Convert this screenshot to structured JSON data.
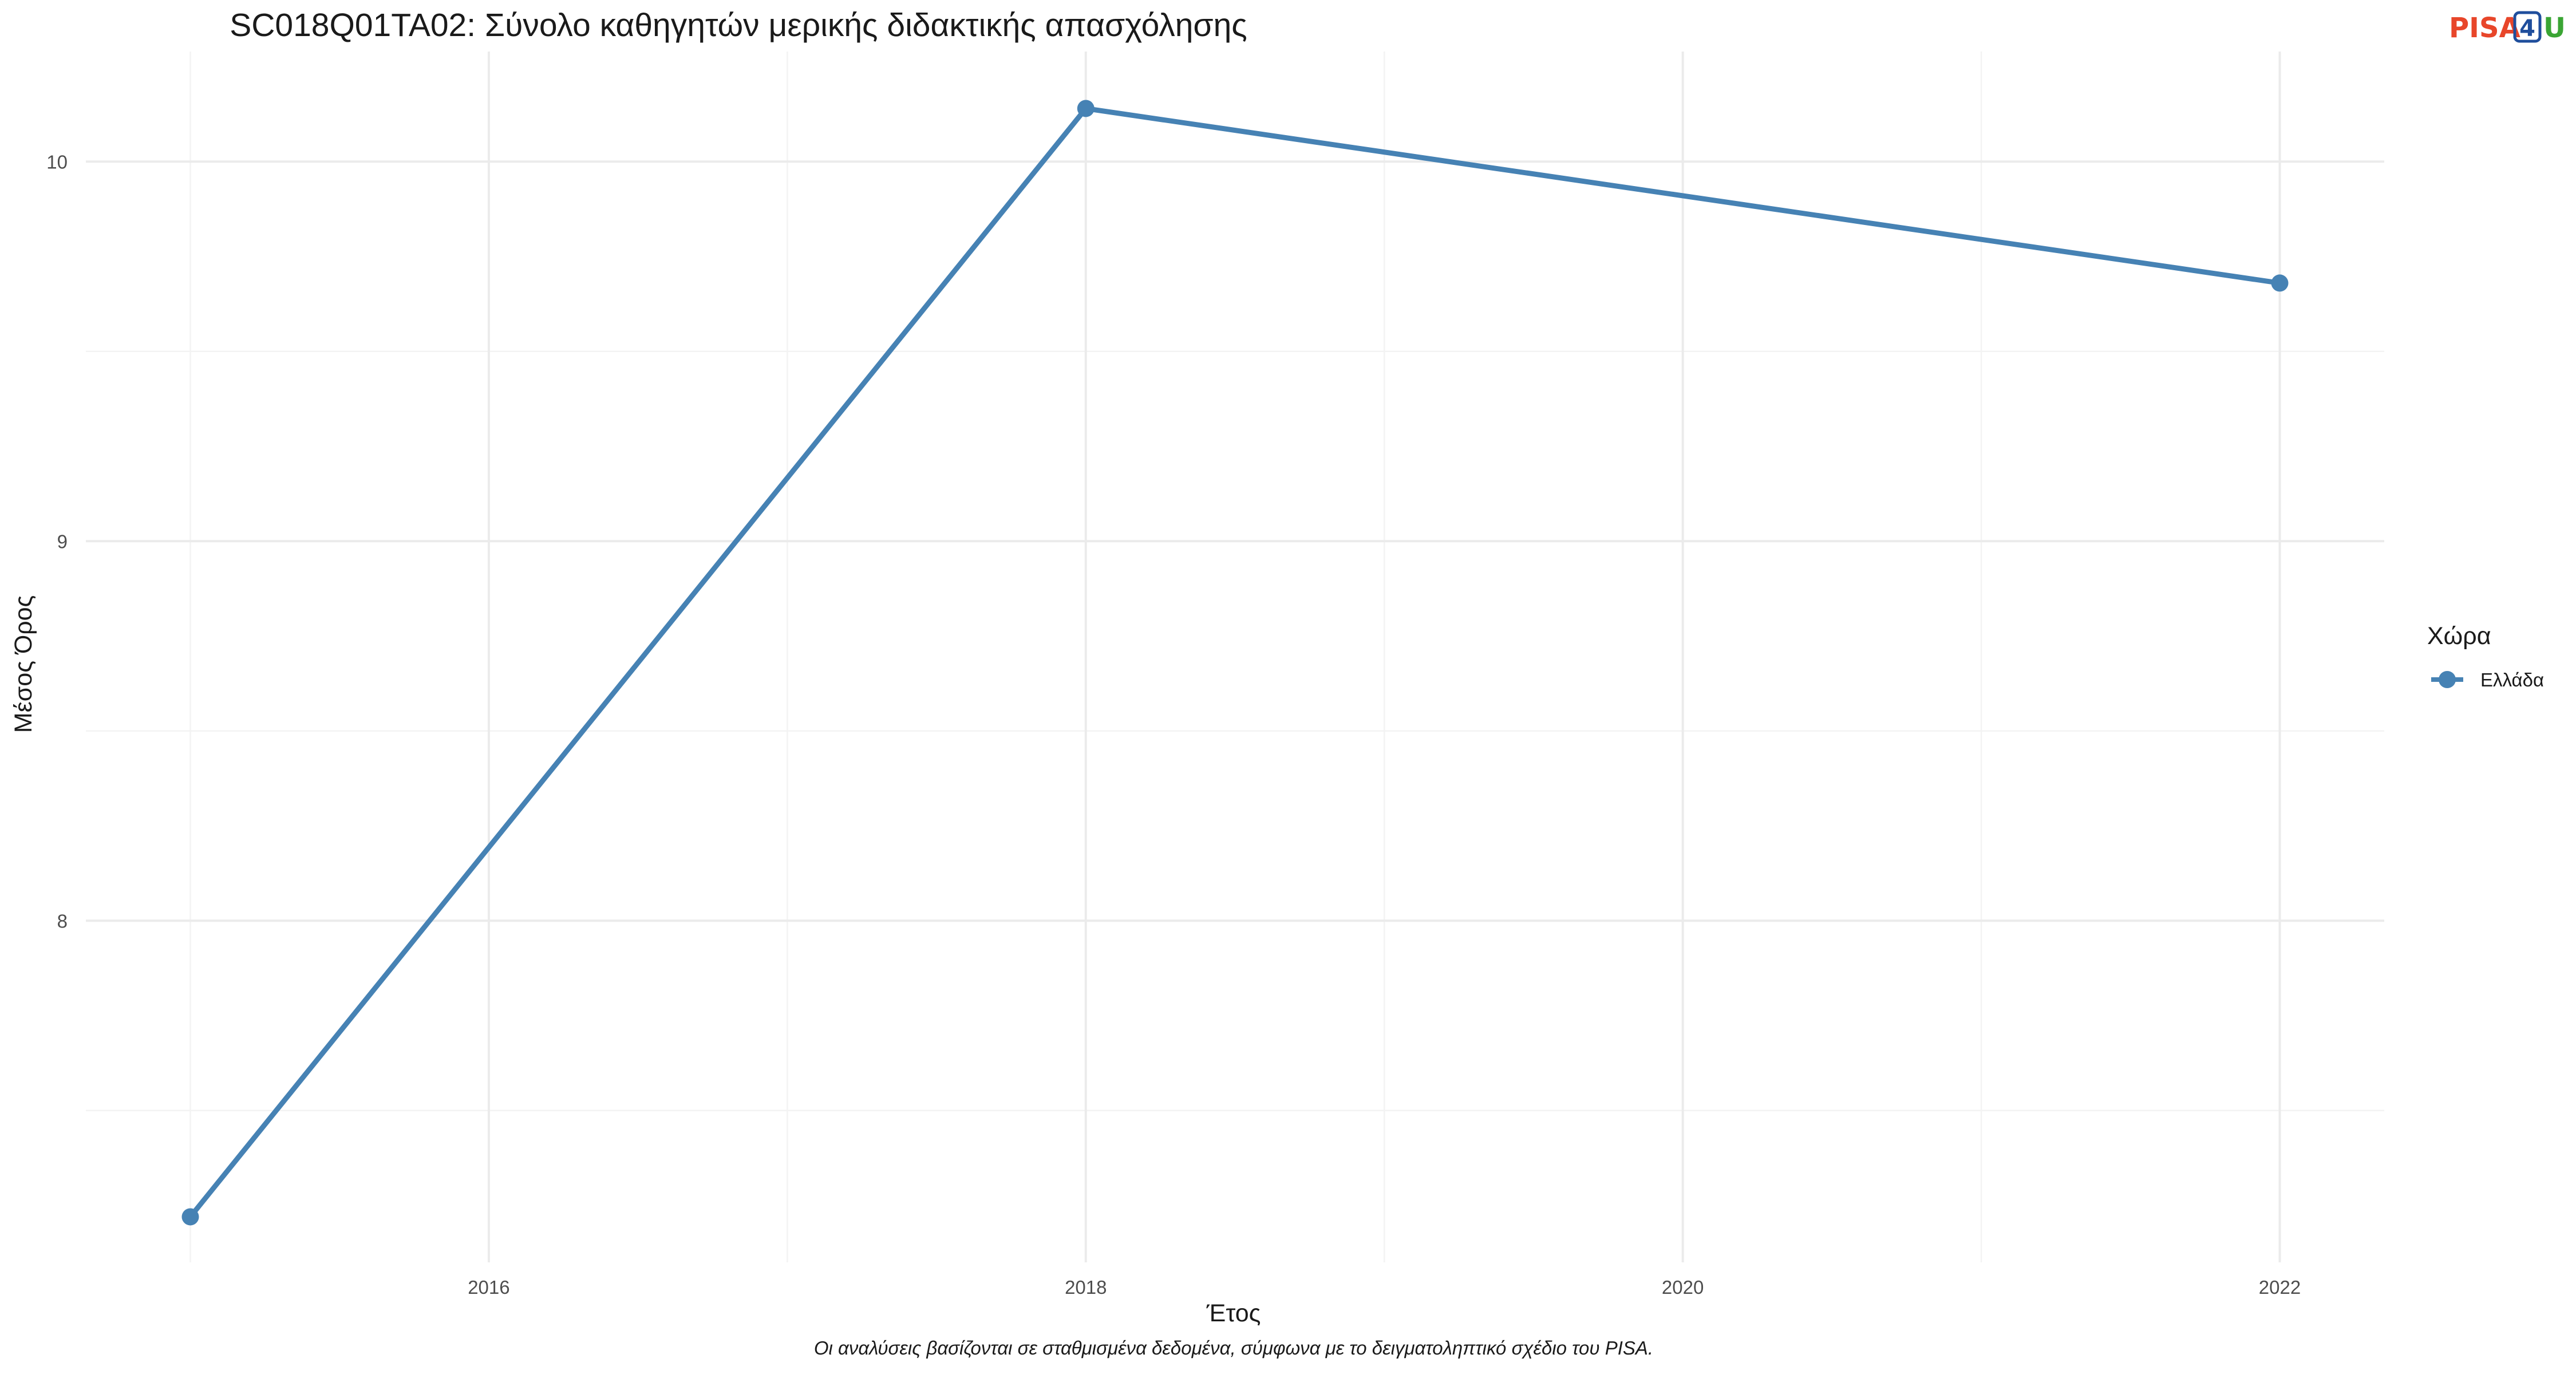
{
  "logo": {
    "text_left": "PISA",
    "text_mid": "4",
    "text_right": "U",
    "color_left": "#e8462a",
    "color_mid": "#1f4e9c",
    "color_right": "#3aa534"
  },
  "caption": "Οι αναλύσεις βασίζονται σε σταθμισμένα δεδομένα, σύμφωνα με το δειγματοληπτικό σχέδιο του PISA.",
  "chart_data": {
    "type": "line",
    "title": "SC018Q01TA02: Σύνολο καθηγητών μερικής διδακτικής απασχόλησης",
    "xlabel": "Έτος",
    "ylabel": "Μέσος Όρος",
    "x": [
      2015,
      2018,
      2022
    ],
    "series": [
      {
        "name": "Ελλάδα",
        "values": [
          7.22,
          10.14,
          9.68
        ],
        "color": "#4682b4"
      }
    ],
    "xlim": [
      2014.65,
      2022.35
    ],
    "ylim": [
      7.1,
      10.29
    ],
    "x_ticks": [
      2016,
      2018,
      2020,
      2022
    ],
    "x_tick_labels": [
      "2016",
      "2018",
      "2020",
      "2022"
    ],
    "x_minor": [
      2015,
      2017,
      2019,
      2021
    ],
    "y_ticks": [
      8,
      9,
      10
    ],
    "y_tick_labels": [
      "8",
      "9",
      "10"
    ],
    "y_minor": [
      7.5,
      8.5,
      9.5
    ],
    "grid": true,
    "legend": {
      "title": "Χώρα",
      "position": "right"
    }
  }
}
